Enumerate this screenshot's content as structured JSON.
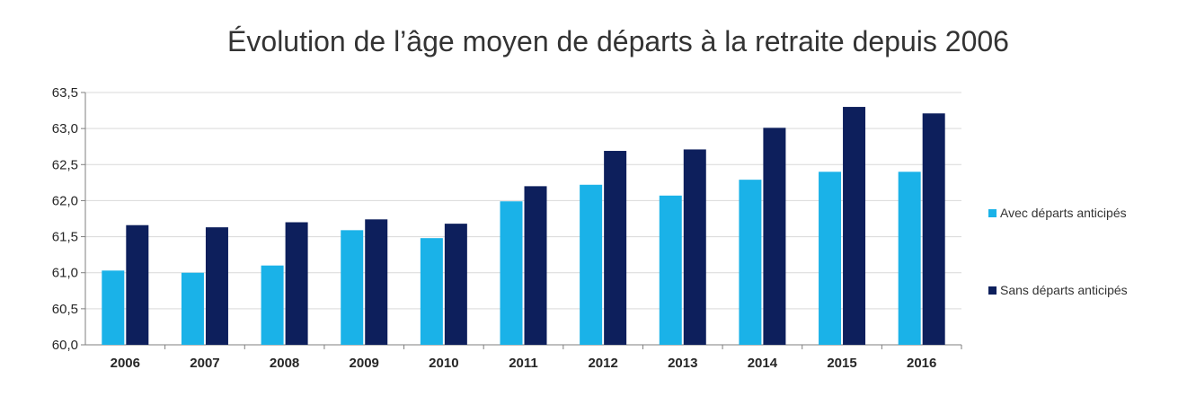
{
  "chart_data": {
    "type": "bar",
    "title": "Évolution de l’âge moyen de départs à la retraite depuis 2006",
    "categories": [
      "2006",
      "2007",
      "2008",
      "2009",
      "2010",
      "2011",
      "2012",
      "2013",
      "2014",
      "2015",
      "2016"
    ],
    "series": [
      {
        "name": "Avec départs anticipés",
        "color": "#1ab2e8",
        "values": [
          61.03,
          61.0,
          61.1,
          61.59,
          61.48,
          61.99,
          62.22,
          62.07,
          62.29,
          62.4,
          62.4
        ]
      },
      {
        "name": "Sans départs anticipés",
        "color": "#0d1f5c",
        "values": [
          61.66,
          61.63,
          61.7,
          61.74,
          61.68,
          62.2,
          62.69,
          62.71,
          63.01,
          63.3,
          63.21
        ]
      }
    ],
    "ylim": [
      60.0,
      63.5
    ],
    "yticks": [
      "60,0",
      "60,5",
      "61,0",
      "61,5",
      "62,0",
      "62,5",
      "63,0",
      "63,5"
    ],
    "grid": true,
    "legend": "right"
  }
}
